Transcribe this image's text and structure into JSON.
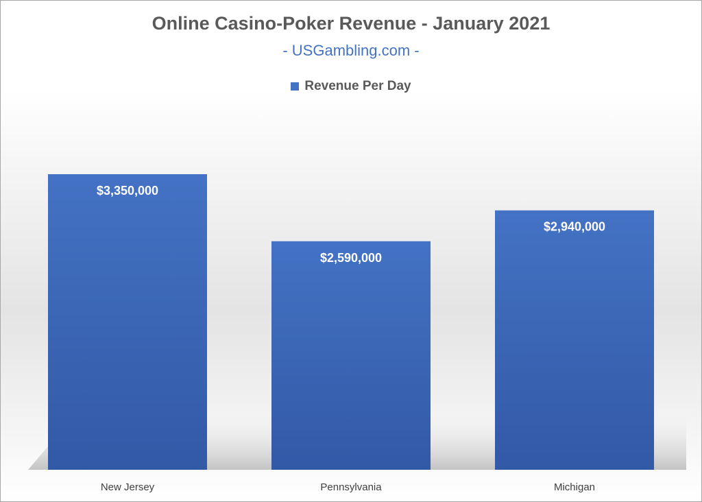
{
  "colors": {
    "bar": "#4472c4",
    "bar_dark": "#3259a6",
    "title": "#595959",
    "subtitle": "#4472c4"
  },
  "chart_data": {
    "type": "bar",
    "title": "Online Casino-Poker Revenue - January 2021",
    "subtitle": "- USGambling.com -",
    "legend": {
      "position": "top",
      "entries": [
        "Revenue Per Day"
      ]
    },
    "categories": [
      "New Jersey",
      "Pennsylvania",
      "Michigan"
    ],
    "series": [
      {
        "name": "Revenue Per Day",
        "values": [
          3350000,
          2590000,
          2940000
        ]
      }
    ],
    "data_labels": [
      "$3,350,000",
      "$2,590,000",
      "$2,940,000"
    ],
    "xlabel": "",
    "ylabel": "",
    "ylim": [
      0,
      3350000
    ],
    "grid": false
  }
}
